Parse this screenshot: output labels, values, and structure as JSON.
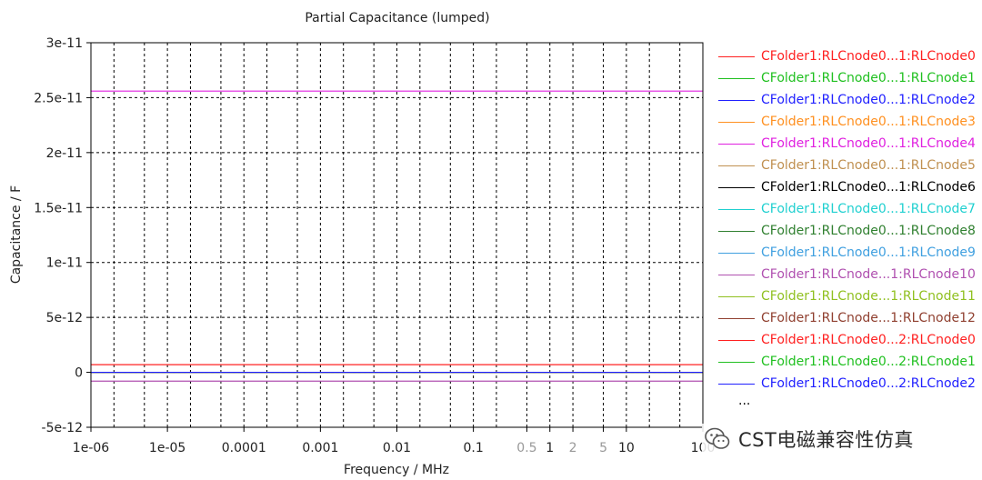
{
  "chart_data": {
    "type": "line",
    "title": "Partial Capacitance (lumped)",
    "xlabel": "Frequency / MHz",
    "ylabel": "Capacitance / F",
    "x_scale": "log",
    "xlim": [
      1e-06,
      100
    ],
    "ylim": [
      -5e-12,
      3e-11
    ],
    "x_ticks": [
      {
        "value": 1e-06,
        "label": "1e-06",
        "major": true
      },
      {
        "value": 1e-05,
        "label": "1e-05",
        "major": true
      },
      {
        "value": 0.0001,
        "label": "0.0001",
        "major": true
      },
      {
        "value": 0.001,
        "label": "0.001",
        "major": true
      },
      {
        "value": 0.01,
        "label": "0.01",
        "major": true
      },
      {
        "value": 0.1,
        "label": "0.1",
        "major": true
      },
      {
        "value": 0.5,
        "label": "0.5",
        "major": false
      },
      {
        "value": 1,
        "label": "1",
        "major": true
      },
      {
        "value": 2,
        "label": "2",
        "major": false
      },
      {
        "value": 5,
        "label": "5",
        "major": false
      },
      {
        "value": 10,
        "label": "10",
        "major": true
      },
      {
        "value": 100,
        "label": "100",
        "major": true
      }
    ],
    "y_ticks": [
      {
        "value": 3e-11,
        "label": "3e-11"
      },
      {
        "value": 2.5e-11,
        "label": "2.5e-11"
      },
      {
        "value": 2e-11,
        "label": "2e-11"
      },
      {
        "value": 1.5e-11,
        "label": "1.5e-11"
      },
      {
        "value": 1e-11,
        "label": "1e-11"
      },
      {
        "value": 5e-12,
        "label": "5e-12"
      },
      {
        "value": 0,
        "label": "0"
      },
      {
        "value": -5e-12,
        "label": "-5e-12"
      }
    ],
    "grid": true,
    "legend_position": "right",
    "series": [
      {
        "name": "CFolder1:RLCnode0...1:RLCnode0",
        "color": "#ff2020",
        "x": [
          1e-06,
          100
        ],
        "y": [
          7e-13,
          7e-13
        ]
      },
      {
        "name": "CFolder1:RLCnode0...1:RLCnode1",
        "color": "#20c020",
        "x": [
          1e-06,
          100
        ],
        "y": [
          0,
          0
        ]
      },
      {
        "name": "CFolder1:RLCnode0...1:RLCnode2",
        "color": "#2020ff",
        "x": [
          1e-06,
          100
        ],
        "y": [
          0,
          0
        ]
      },
      {
        "name": "CFolder1:RLCnode0...1:RLCnode3",
        "color": "#ff9020",
        "x": [
          1e-06,
          100
        ],
        "y": [
          0,
          0
        ]
      },
      {
        "name": "CFolder1:RLCnode0...1:RLCnode4",
        "color": "#e020e0",
        "x": [
          1e-06,
          100
        ],
        "y": [
          2.56e-11,
          2.56e-11
        ]
      },
      {
        "name": "CFolder1:RLCnode0...1:RLCnode5",
        "color": "#c09050",
        "x": [
          1e-06,
          100
        ],
        "y": [
          0,
          0
        ]
      },
      {
        "name": "CFolder1:RLCnode0...1:RLCnode6",
        "color": "#000000",
        "x": [
          1e-06,
          100
        ],
        "y": [
          0,
          0
        ]
      },
      {
        "name": "CFolder1:RLCnode0...1:RLCnode7",
        "color": "#20d0d0",
        "x": [
          1e-06,
          100
        ],
        "y": [
          0,
          0
        ]
      },
      {
        "name": "CFolder1:RLCnode0...1:RLCnode8",
        "color": "#308030",
        "x": [
          1e-06,
          100
        ],
        "y": [
          0,
          0
        ]
      },
      {
        "name": "CFolder1:RLCnode0...1:RLCnode9",
        "color": "#40a0e0",
        "x": [
          1e-06,
          100
        ],
        "y": [
          0,
          0
        ]
      },
      {
        "name": "CFolder1:RLCnode...1:RLCnode10",
        "color": "#b050b0",
        "x": [
          1e-06,
          100
        ],
        "y": [
          -8e-13,
          -8e-13
        ]
      },
      {
        "name": "CFolder1:RLCnode...1:RLCnode11",
        "color": "#90c020",
        "x": [
          1e-06,
          100
        ],
        "y": [
          0,
          0
        ]
      },
      {
        "name": "CFolder1:RLCnode...1:RLCnode12",
        "color": "#904030",
        "x": [
          1e-06,
          100
        ],
        "y": [
          0,
          0
        ]
      },
      {
        "name": "CFolder1:RLCnode0...2:RLCnode0",
        "color": "#ff2020",
        "x": [
          1e-06,
          100
        ],
        "y": [
          0,
          0
        ]
      },
      {
        "name": "CFolder1:RLCnode0...2:RLCnode1",
        "color": "#20c020",
        "x": [
          1e-06,
          100
        ],
        "y": [
          0,
          0
        ]
      },
      {
        "name": "CFolder1:RLCnode0...2:RLCnode2",
        "color": "#2020ff",
        "x": [
          1e-06,
          100
        ],
        "y": [
          0,
          0
        ]
      }
    ]
  },
  "legend": {
    "more_label": "..."
  },
  "watermark": {
    "text": "CST电磁兼容性仿真",
    "icon": "wechat-icon"
  }
}
